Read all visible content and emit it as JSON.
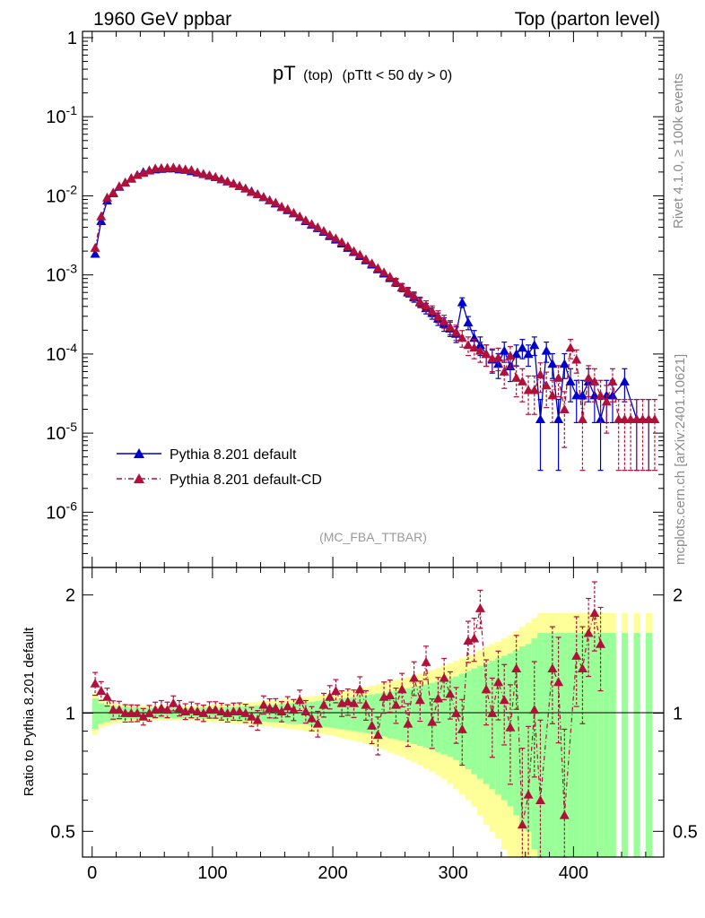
{
  "header": {
    "left": "1960 GeV ppbar",
    "right": "Top (parton level)"
  },
  "title": {
    "main": "pT",
    "sub1": "(top)",
    "sub2": "(pTtt < 50 dy > 0)"
  },
  "side_label_top": "Rivet 4.1.0, ≥ 100k events",
  "side_label_bottom": "mcplots.cern.ch [arXiv:2401.10621]",
  "analysis_label": "(MC_FBA_TTBAR)",
  "legend": [
    {
      "label": "Pythia 8.201 default",
      "color": "#0000cc",
      "style": "solid"
    },
    {
      "label": "Pythia 8.201 default-CD",
      "color": "#b0103a",
      "style": "dashdot"
    }
  ],
  "colors": {
    "blue": "#0000cc",
    "red": "#b0103a",
    "band_yellow": "#ffff99",
    "band_green": "#99ff99"
  },
  "chart_data": [
    {
      "type": "line",
      "title": "pT (top) (pTtt < 50 dy > 0)",
      "xlabel": "",
      "ylabel": "",
      "xlim": [
        -8,
        475
      ],
      "ylim": [
        2e-07,
        1.2
      ],
      "yscale": "log",
      "y_tick_labels": [
        "1",
        "10^-1",
        "10^-2",
        "10^-3",
        "10^-4",
        "10^-5",
        "10^-6"
      ],
      "series": [
        {
          "name": "Pythia 8.201 default",
          "x": [
            2.5,
            7.5,
            12.5,
            17.5,
            22.5,
            27.5,
            32.5,
            37.5,
            42.5,
            47.5,
            52.5,
            57.5,
            62.5,
            67.5,
            72.5,
            77.5,
            82.5,
            87.5,
            92.5,
            97.5,
            102.5,
            107.5,
            112.5,
            117.5,
            122.5,
            127.5,
            132.5,
            137.5,
            142.5,
            147.5,
            152.5,
            157.5,
            162.5,
            167.5,
            172.5,
            177.5,
            182.5,
            187.5,
            192.5,
            197.5,
            202.5,
            207.5,
            212.5,
            217.5,
            222.5,
            227.5,
            232.5,
            237.5,
            242.5,
            247.5,
            252.5,
            257.5,
            262.5,
            267.5,
            272.5,
            277.5,
            282.5,
            287.5,
            292.5,
            297.5,
            302.5,
            307.5,
            312.5,
            317.5,
            322.5,
            327.5,
            332.5,
            337.5,
            342.5,
            347.5,
            352.5,
            357.5,
            362.5,
            367.5,
            372.5,
            377.5,
            382.5,
            387.5,
            392.5,
            397.5,
            402.5,
            407.5,
            412.5,
            417.5,
            422.5,
            427.5,
            432.5,
            442.5,
            452.5,
            462.5
          ],
          "y": [
            0.00185,
            0.0048,
            0.0087,
            0.0108,
            0.013,
            0.0147,
            0.0165,
            0.0184,
            0.02,
            0.021,
            0.0216,
            0.0219,
            0.0222,
            0.0222,
            0.0216,
            0.0213,
            0.0205,
            0.0197,
            0.0188,
            0.018,
            0.0172,
            0.0162,
            0.0152,
            0.0143,
            0.0133,
            0.0124,
            0.0114,
            0.0105,
            0.0096,
            0.0088,
            0.008,
            0.0072,
            0.0066,
            0.006,
            0.0054,
            0.0048,
            0.0043,
            0.0039,
            0.0035,
            0.0031,
            0.0028,
            0.0025,
            0.0022,
            0.00195,
            0.00173,
            0.00153,
            0.00135,
            0.00118,
            0.00104,
            0.00091,
            0.0008,
            0.00069,
            0.0006,
            0.00052,
            0.00045,
            0.00038,
            0.00033,
            0.00028,
            0.00024,
            0.00021,
            0.00018,
            0.00045,
            0.00025,
            0.00016,
            0.00013,
            0.0001,
            8.5e-05,
            7.5e-05,
            0.00011,
            7e-05,
            0.0001,
            0.00012,
            0.0001,
            0.00013,
            1.5e-05,
            0.00011,
            7.5e-05,
            1.5e-05,
            7.5e-05,
            4.5e-05,
            3e-05,
            3e-05,
            4.5e-05,
            3e-05,
            1.5e-05,
            3e-05,
            3e-05,
            4.5e-05,
            1.5e-05,
            1.5e-05
          ]
        },
        {
          "name": "Pythia 8.201 default-CD",
          "x": [
            2.5,
            7.5,
            12.5,
            17.5,
            22.5,
            27.5,
            32.5,
            37.5,
            42.5,
            47.5,
            52.5,
            57.5,
            62.5,
            67.5,
            72.5,
            77.5,
            82.5,
            87.5,
            92.5,
            97.5,
            102.5,
            107.5,
            112.5,
            117.5,
            122.5,
            127.5,
            132.5,
            137.5,
            142.5,
            147.5,
            152.5,
            157.5,
            162.5,
            167.5,
            172.5,
            177.5,
            182.5,
            187.5,
            192.5,
            197.5,
            202.5,
            207.5,
            212.5,
            217.5,
            222.5,
            227.5,
            232.5,
            237.5,
            242.5,
            247.5,
            252.5,
            257.5,
            262.5,
            267.5,
            272.5,
            277.5,
            282.5,
            287.5,
            292.5,
            297.5,
            302.5,
            307.5,
            312.5,
            317.5,
            322.5,
            327.5,
            332.5,
            337.5,
            342.5,
            347.5,
            352.5,
            357.5,
            362.5,
            367.5,
            372.5,
            377.5,
            382.5,
            387.5,
            392.5,
            397.5,
            402.5,
            407.5,
            412.5,
            417.5,
            422.5,
            427.5,
            432.5,
            437.5,
            442.5,
            447.5,
            452.5,
            457.5,
            462.5,
            467.5
          ],
          "y": [
            0.0022,
            0.0055,
            0.0095,
            0.011,
            0.0132,
            0.0147,
            0.0168,
            0.0183,
            0.0195,
            0.0209,
            0.0222,
            0.0224,
            0.0226,
            0.0228,
            0.0222,
            0.0216,
            0.0212,
            0.0198,
            0.0189,
            0.0182,
            0.0173,
            0.0163,
            0.0152,
            0.0143,
            0.0134,
            0.0124,
            0.0112,
            0.0105,
            0.0097,
            0.0088,
            0.0082,
            0.0073,
            0.0068,
            0.0061,
            0.0055,
            0.0049,
            0.0044,
            0.004,
            0.0036,
            0.0032,
            0.0029,
            0.0026,
            0.0023,
            0.002,
            0.0018,
            0.00158,
            0.0014,
            0.00122,
            0.00108,
            0.00095,
            0.00082,
            0.0007,
            0.00062,
            0.00054,
            0.00046,
            0.00041,
            0.00035,
            0.0003,
            0.00026,
            0.00022,
            0.00019,
            0.00016,
            0.00013,
            0.00012,
            0.00011,
            0.0001,
            8.8e-05,
            9e-05,
            6e-05,
            9.5e-05,
            5e-05,
            4.5e-05,
            3.5e-05,
            3.5e-05,
            5.5e-05,
            4e-05,
            3e-05,
            5e-05,
            2e-05,
            0.00012,
            8.5e-05,
            1.5e-05,
            5e-05,
            4.5e-05,
            3e-05,
            2.5e-05,
            4.5e-05,
            1.5e-05,
            1.5e-05,
            1.5e-05,
            1.5e-05,
            1.5e-05,
            1.5e-05,
            1.5e-05
          ]
        }
      ]
    },
    {
      "type": "line",
      "title": "",
      "xlabel": "",
      "ylabel": "Ratio to Pythia 8.201 default",
      "xlim": [
        -8,
        475
      ],
      "ylim": [
        0.43,
        2.35
      ],
      "yscale": "log",
      "x_tick_labels": [
        "0",
        "100",
        "200",
        "300",
        "400"
      ],
      "y_tick_labels": [
        "0.5",
        "1",
        "2"
      ],
      "bands": {
        "x": [
          2.5,
          7.5,
          12.5,
          17.5,
          22.5,
          27.5,
          32.5,
          37.5,
          42.5,
          47.5,
          52.5,
          57.5,
          62.5,
          67.5,
          72.5,
          77.5,
          82.5,
          87.5,
          92.5,
          97.5,
          102.5,
          107.5,
          112.5,
          117.5,
          122.5,
          127.5,
          132.5,
          137.5,
          142.5,
          147.5,
          152.5,
          157.5,
          162.5,
          167.5,
          172.5,
          177.5,
          182.5,
          187.5,
          192.5,
          197.5,
          202.5,
          207.5,
          212.5,
          217.5,
          222.5,
          227.5,
          232.5,
          237.5,
          242.5,
          247.5,
          252.5,
          257.5,
          262.5,
          267.5,
          272.5,
          277.5,
          282.5,
          287.5,
          292.5,
          297.5,
          302.5,
          307.5,
          312.5,
          317.5,
          322.5,
          327.5,
          332.5,
          337.5,
          342.5,
          347.5,
          352.5,
          357.5,
          362.5,
          367.5,
          372.5,
          377.5,
          382.5,
          387.5,
          392.5,
          397.5,
          402.5,
          407.5,
          412.5,
          417.5,
          422.5,
          427.5,
          432.5,
          442.5,
          452.5,
          462.5
        ],
        "green_halfwidth": [
          0.09,
          0.06,
          0.05,
          0.045,
          0.04,
          0.038,
          0.036,
          0.034,
          0.032,
          0.03,
          0.03,
          0.03,
          0.03,
          0.03,
          0.03,
          0.03,
          0.031,
          0.032,
          0.033,
          0.034,
          0.035,
          0.036,
          0.037,
          0.038,
          0.04,
          0.042,
          0.044,
          0.046,
          0.048,
          0.05,
          0.052,
          0.054,
          0.057,
          0.06,
          0.063,
          0.066,
          0.07,
          0.074,
          0.078,
          0.082,
          0.086,
          0.09,
          0.095,
          0.1,
          0.105,
          0.11,
          0.116,
          0.122,
          0.128,
          0.135,
          0.142,
          0.15,
          0.158,
          0.166,
          0.175,
          0.184,
          0.194,
          0.204,
          0.215,
          0.226,
          0.24,
          0.26,
          0.28,
          0.3,
          0.32,
          0.34,
          0.36,
          0.38,
          0.4,
          0.42,
          0.45,
          0.48,
          0.5,
          0.55,
          0.6,
          0.6,
          0.6,
          0.6,
          0.6,
          0.6,
          0.6,
          0.6,
          0.6,
          0.6,
          0.6,
          0.6,
          0.6,
          0.6,
          0.6,
          0.6
        ],
        "yellow_halfwidth": [
          0.12,
          0.08,
          0.07,
          0.06,
          0.055,
          0.052,
          0.05,
          0.048,
          0.046,
          0.044,
          0.043,
          0.042,
          0.042,
          0.042,
          0.042,
          0.042,
          0.043,
          0.045,
          0.047,
          0.049,
          0.051,
          0.053,
          0.055,
          0.058,
          0.061,
          0.064,
          0.067,
          0.07,
          0.073,
          0.076,
          0.079,
          0.083,
          0.087,
          0.091,
          0.095,
          0.1,
          0.105,
          0.11,
          0.116,
          0.122,
          0.128,
          0.135,
          0.142,
          0.15,
          0.158,
          0.166,
          0.175,
          0.184,
          0.194,
          0.204,
          0.215,
          0.226,
          0.238,
          0.25,
          0.262,
          0.276,
          0.29,
          0.305,
          0.32,
          0.34,
          0.36,
          0.38,
          0.4,
          0.42,
          0.45,
          0.48,
          0.5,
          0.52,
          0.55,
          0.58,
          0.62,
          0.66,
          0.7,
          0.75,
          0.8,
          0.8,
          0.8,
          0.8,
          0.8,
          0.8,
          0.8,
          0.8,
          0.8,
          0.8,
          0.8,
          0.8,
          0.8,
          0.8,
          0.8,
          0.8
        ]
      },
      "series": [
        {
          "name": "Pythia 8.201 default-CD / Pythia 8.201 default",
          "x": [
            2.5,
            7.5,
            12.5,
            17.5,
            22.5,
            27.5,
            32.5,
            37.5,
            42.5,
            47.5,
            52.5,
            57.5,
            62.5,
            67.5,
            72.5,
            77.5,
            82.5,
            87.5,
            92.5,
            97.5,
            102.5,
            107.5,
            112.5,
            117.5,
            122.5,
            127.5,
            132.5,
            137.5,
            142.5,
            147.5,
            152.5,
            157.5,
            162.5,
            167.5,
            172.5,
            177.5,
            182.5,
            187.5,
            192.5,
            197.5,
            202.5,
            207.5,
            212.5,
            217.5,
            222.5,
            227.5,
            232.5,
            237.5,
            242.5,
            247.5,
            252.5,
            257.5,
            262.5,
            267.5,
            272.5,
            277.5,
            282.5,
            287.5,
            292.5,
            297.5,
            302.5,
            307.5,
            312.5,
            317.5,
            322.5,
            327.5,
            332.5,
            337.5,
            342.5,
            347.5,
            352.5,
            357.5,
            362.5,
            367.5,
            372.5,
            382.5,
            387.5,
            392.5,
            402.5,
            407.5,
            412.5,
            417.5,
            422.5
          ],
          "y": [
            1.19,
            1.14,
            1.1,
            1.02,
            1.02,
            1.0,
            1.0,
            1.0,
            0.98,
            1.0,
            1.02,
            1.03,
            1.02,
            1.06,
            1.03,
            1.01,
            1.02,
            1.01,
            1.0,
            1.02,
            1.02,
            1.01,
            1.0,
            1.01,
            1.01,
            1.0,
            0.98,
            0.96,
            1.05,
            1.03,
            1.03,
            1.01,
            1.04,
            1.02,
            1.08,
            1.01,
            0.97,
            0.94,
            1.05,
            1.1,
            1.14,
            1.06,
            1.07,
            1.06,
            1.15,
            1.05,
            0.93,
            0.88,
            1.1,
            1.11,
            1.05,
            1.15,
            0.94,
            1.23,
            1.08,
            1.35,
            0.95,
            1.09,
            1.23,
            1.12,
            1.0,
            0.91,
            1.53,
            1.55,
            1.85,
            1.15,
            1.0,
            1.2,
            1.08,
            0.92,
            1.3,
            0.52,
            0.62,
            1.02,
            0.6,
            1.3,
            1.2,
            0.55,
            1.4,
            1.3,
            1.6,
            1.8,
            1.5
          ]
        }
      ]
    }
  ]
}
